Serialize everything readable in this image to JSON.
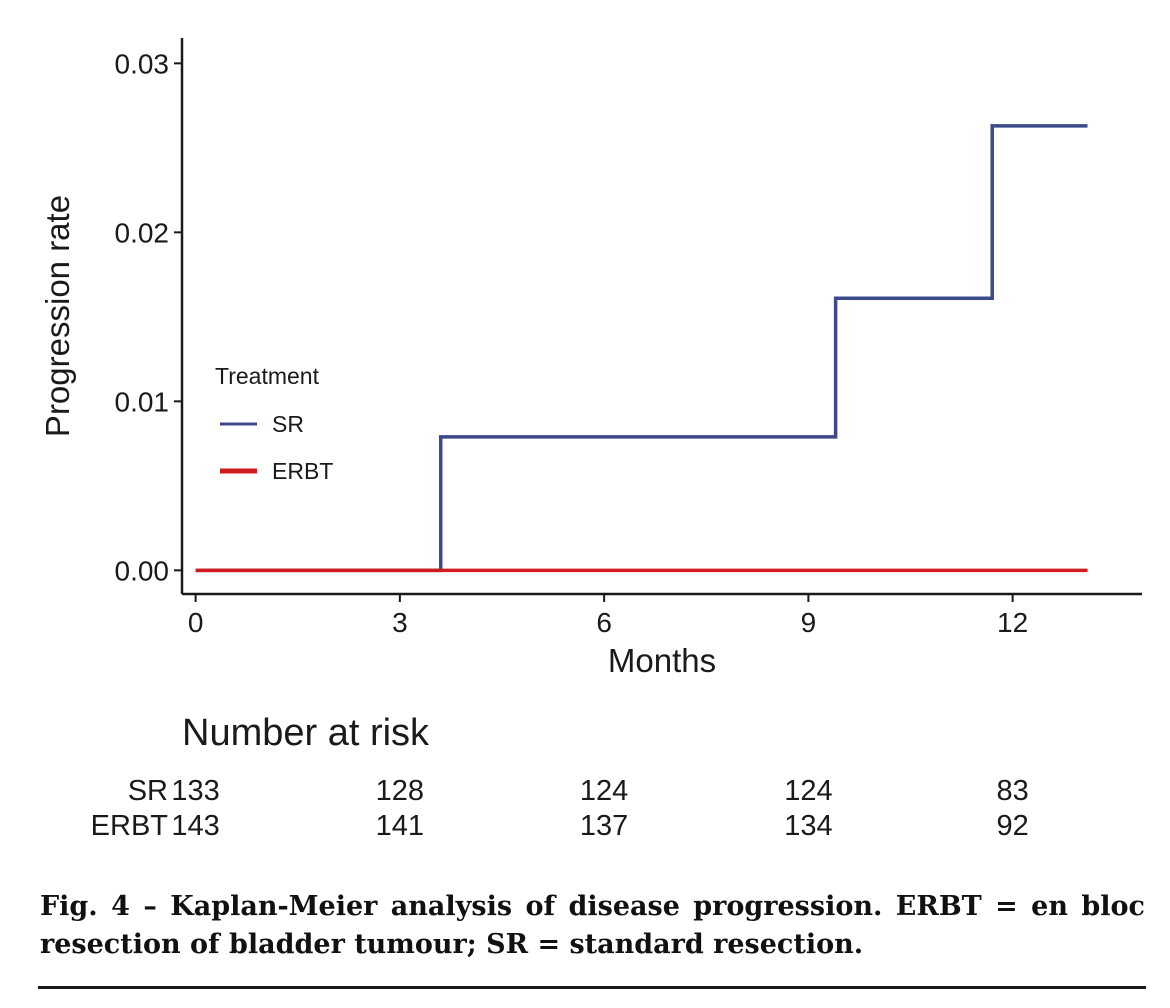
{
  "chart_data": {
    "type": "line",
    "subtype": "kaplan-meier step curve",
    "xlabel": "Months",
    "ylabel": "Progression rate",
    "xlim": [
      -0.2,
      13.9
    ],
    "ylim": [
      -0.0014,
      0.0315
    ],
    "x_ticks": [
      0,
      3,
      6,
      9,
      12
    ],
    "x_tick_labels": [
      "0",
      "3",
      "6",
      "9",
      "12"
    ],
    "y_ticks": [
      0,
      0.01,
      0.02,
      0.03
    ],
    "y_tick_labels": [
      "0.00",
      "0.01",
      "0.02",
      "0.03"
    ],
    "grid": false,
    "legend": {
      "title": "Treatment",
      "placement": "left, inside plot",
      "entries": [
        "SR",
        "ERBT"
      ]
    },
    "series": [
      {
        "name": "SR",
        "color": "#3b4a8c",
        "steps": [
          {
            "x": 0,
            "y": 0
          },
          {
            "x": 3.6,
            "y": 0.0079
          },
          {
            "x": 9.4,
            "y": 0.0161
          },
          {
            "x": 11.7,
            "y": 0.0263
          },
          {
            "x": 13.1,
            "y": 0.0263
          }
        ]
      },
      {
        "name": "ERBT",
        "color": "#d01c1c",
        "steps": [
          {
            "x": 0,
            "y": 0
          },
          {
            "x": 13.1,
            "y": 0
          }
        ]
      }
    ],
    "risk_table": {
      "title": "Number at risk",
      "times": [
        0,
        3,
        6,
        9,
        12
      ],
      "rows": [
        {
          "name": "SR",
          "values": [
            "133",
            "128",
            "124",
            "124",
            "83"
          ]
        },
        {
          "name": "ERBT",
          "values": [
            "143",
            "141",
            "137",
            "134",
            "92"
          ]
        }
      ]
    }
  },
  "caption": "Fig. 4 – Kaplan-Meier analysis of disease progression. ERBT = en bloc resection of bladder tumour; SR = standard resection."
}
